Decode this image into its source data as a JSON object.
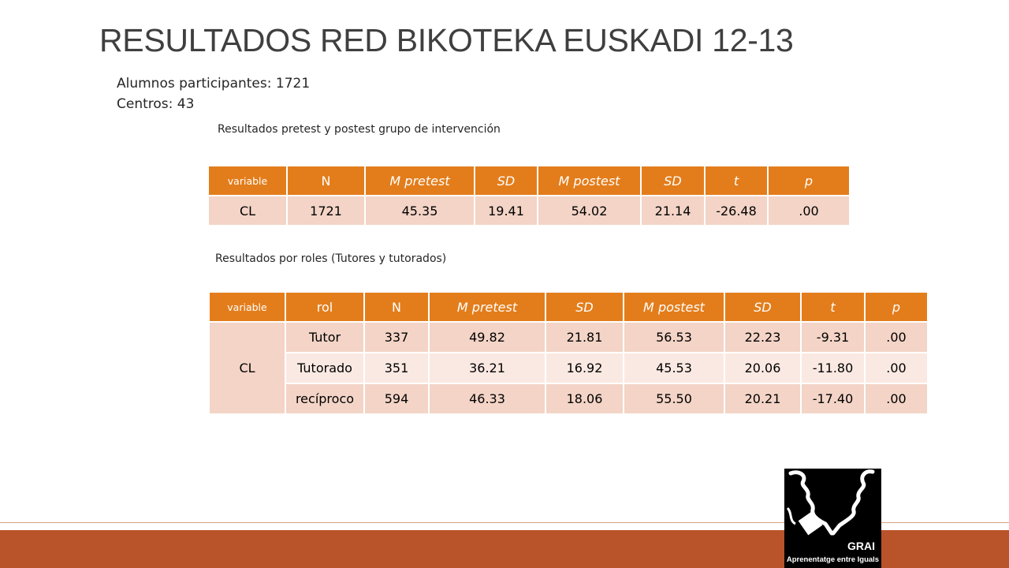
{
  "title": "RESULTADOS RED BIKOTEKA EUSKADI 12-13",
  "stats": {
    "students": "Alumnos participantes: 1721",
    "centers": "Centros: 43"
  },
  "captions": {
    "pre_post": "Resultados pretest y postest grupo de intervención",
    "roles": "Resultados por roles (Tutores y tutorados)"
  },
  "table1": {
    "headers": [
      "variable",
      "N",
      "M pretest",
      "SD",
      "M postest",
      "SD",
      "t",
      "p"
    ],
    "row": [
      "CL",
      "1721",
      "45.35",
      "19.41",
      "54.02",
      "21.14",
      "-26.48",
      ".00"
    ]
  },
  "table2": {
    "headers": [
      "variable",
      "rol",
      "N",
      "M pretest",
      "SD",
      "M postest",
      "SD",
      "t",
      "p"
    ],
    "variable": "CL",
    "rows": [
      [
        "Tutor",
        "337",
        "49.82",
        "21.81",
        "56.53",
        "22.23",
        "-9.31",
        ".00"
      ],
      [
        "Tutorado",
        "351",
        "36.21",
        "16.92",
        "45.53",
        "20.06",
        "-11.80",
        ".00"
      ],
      [
        "recíproco",
        "594",
        "46.33",
        "18.06",
        "55.50",
        "20.21",
        "-17.40",
        ".00"
      ]
    ]
  },
  "logo": {
    "name": "GRAI",
    "tagline": "Aprenentatge entre Iguals"
  },
  "colors": {
    "header": "#e37d1b",
    "row_dark": "#f3d4c6",
    "row_light": "#fae9e2",
    "bottom_bar": "#b9532a"
  }
}
